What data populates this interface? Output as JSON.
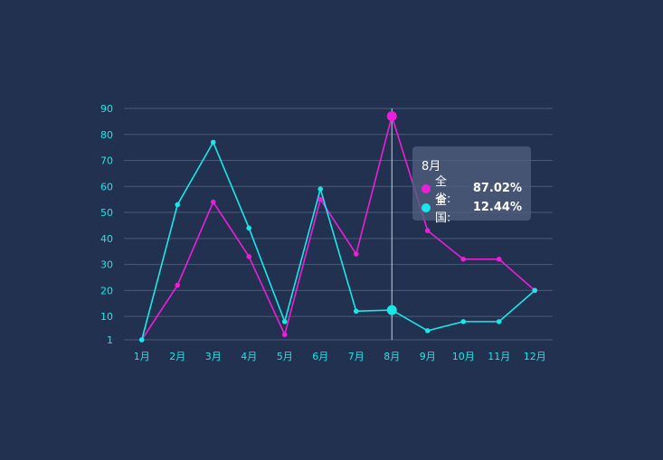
{
  "chart_data": {
    "type": "line",
    "categories": [
      "1月",
      "2月",
      "3月",
      "4月",
      "5月",
      "6月",
      "7月",
      "8月",
      "9月",
      "10月",
      "11月",
      "12月"
    ],
    "y_ticks": [
      1,
      10,
      20,
      30,
      40,
      50,
      60,
      70,
      80,
      90
    ],
    "ylim": [
      1,
      90
    ],
    "grid": true,
    "series": [
      {
        "name": "全省",
        "color": "#ec1fd8",
        "values": [
          1,
          22,
          54,
          33,
          3,
          55,
          34,
          87.02,
          43,
          32,
          32,
          20
        ]
      },
      {
        "name": "全国",
        "color": "#19e8e8",
        "values": [
          1,
          53,
          77,
          44,
          8,
          59,
          12,
          12.44,
          4.5,
          8,
          8,
          20
        ]
      }
    ],
    "highlight_index": 7,
    "tooltip": {
      "title": "8月",
      "rows": [
        {
          "label": "全省:",
          "value": "87.02%",
          "color": "#ec1fd8"
        },
        {
          "label": "全国:",
          "value": "12.44%",
          "color": "#19e8e8"
        }
      ]
    }
  }
}
